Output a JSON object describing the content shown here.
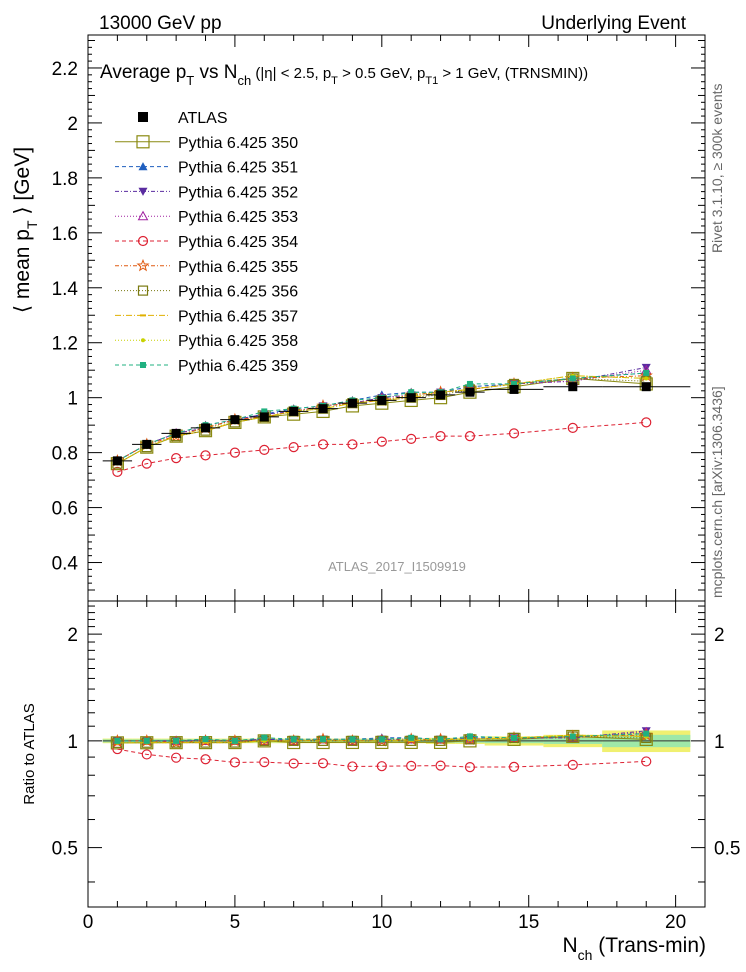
{
  "header": {
    "left": "13000 GeV pp",
    "right": "Underlying Event"
  },
  "side": {
    "rivet": "Rivet 3.1.10, ≥ 300k events",
    "mcplots": "mcplots.cern.ch [arXiv:1306.3436]"
  },
  "chart_data": {
    "type": "line",
    "title": "Average p_T vs N_ch (|η| < 2.5, p_T > 0.5 GeV, p_T1 > 1 GeV, (TRNSMIN))",
    "ylabel": "⟨ mean p_T ⟩ [GeV]",
    "xlabel": "N_ch (Trans-min)",
    "ratio_ylabel": "Ratio to ATLAS",
    "watermark": "ATLAS_2017_I1509919",
    "xlim": [
      0,
      21
    ],
    "ylim": [
      0.26,
      2.32
    ],
    "ratio_ylim": [
      0.34,
      2.48
    ],
    "xticks": [
      0,
      5,
      10,
      15,
      20
    ],
    "yticks": [
      0.4,
      0.6,
      0.8,
      1,
      1.2,
      1.4,
      1.6,
      1.8,
      2,
      2.2
    ],
    "ratio_yticks": [
      0.5,
      1,
      2
    ],
    "x": [
      1,
      2,
      3,
      4,
      5,
      6,
      7,
      8,
      9,
      10,
      11,
      12,
      13,
      14.5,
      16.5,
      19
    ],
    "x_err": [
      0.5,
      0.5,
      0.5,
      0.5,
      0.5,
      0.5,
      0.5,
      0.5,
      0.5,
      0.5,
      0.5,
      0.5,
      0.5,
      1,
      1,
      1.5
    ],
    "reference": {
      "name": "ATLAS",
      "values": [
        0.77,
        0.83,
        0.87,
        0.89,
        0.92,
        0.93,
        0.95,
        0.96,
        0.98,
        0.99,
        1.0,
        1.01,
        1.02,
        1.03,
        1.04,
        1.04
      ],
      "ratio_band_inner": [
        0.01,
        0.01,
        0.01,
        0.01,
        0.01,
        0.01,
        0.01,
        0.01,
        0.01,
        0.01,
        0.01,
        0.012,
        0.012,
        0.015,
        0.02,
        0.04
      ],
      "ratio_band_outer": [
        0.015,
        0.015,
        0.015,
        0.015,
        0.015,
        0.015,
        0.015,
        0.015,
        0.015,
        0.015,
        0.015,
        0.02,
        0.02,
        0.03,
        0.04,
        0.07
      ]
    },
    "series": [
      {
        "name": "Pythia 6.425 350",
        "color": "#8a8a10",
        "dash": "",
        "marker": "open-square-big",
        "values": [
          0.76,
          0.82,
          0.86,
          0.88,
          0.91,
          0.93,
          0.94,
          0.95,
          0.97,
          0.98,
          0.99,
          1.0,
          1.02,
          1.04,
          1.07,
          1.05
        ]
      },
      {
        "name": "Pythia 6.425 351",
        "color": "#1f5fbf",
        "dash": "4,3",
        "marker": "filled-triangle-up",
        "values": [
          0.77,
          0.83,
          0.87,
          0.9,
          0.92,
          0.94,
          0.96,
          0.97,
          0.99,
          1.01,
          1.02,
          1.02,
          1.04,
          1.05,
          1.07,
          1.09
        ]
      },
      {
        "name": "Pythia 6.425 352",
        "color": "#5a2ca0",
        "dash": "4,2,1,2",
        "marker": "filled-triangle-down",
        "values": [
          0.77,
          0.83,
          0.87,
          0.89,
          0.92,
          0.94,
          0.95,
          0.97,
          0.98,
          1.0,
          1.01,
          1.02,
          1.03,
          1.05,
          1.06,
          1.11
        ]
      },
      {
        "name": "Pythia 6.425 353",
        "color": "#a020a0",
        "dash": "1,2",
        "marker": "open-triangle-up",
        "values": [
          0.77,
          0.83,
          0.87,
          0.89,
          0.92,
          0.93,
          0.95,
          0.97,
          0.98,
          1.0,
          1.01,
          1.02,
          1.03,
          1.05,
          1.06,
          1.1
        ]
      },
      {
        "name": "Pythia 6.425 354",
        "color": "#dd2233",
        "dash": "4,3",
        "marker": "open-circle",
        "values": [
          0.73,
          0.76,
          0.78,
          0.79,
          0.8,
          0.81,
          0.82,
          0.83,
          0.83,
          0.84,
          0.85,
          0.86,
          0.86,
          0.87,
          0.89,
          0.91
        ]
      },
      {
        "name": "Pythia 6.425 355",
        "color": "#e05a10",
        "dash": "4,2,1,2",
        "marker": "open-star",
        "values": [
          0.77,
          0.83,
          0.86,
          0.89,
          0.92,
          0.93,
          0.95,
          0.97,
          0.98,
          0.99,
          1.01,
          1.02,
          1.03,
          1.05,
          1.07,
          1.08
        ]
      },
      {
        "name": "Pythia 6.425 356",
        "color": "#7a7a10",
        "dash": "1,2",
        "marker": "open-square",
        "values": [
          0.76,
          0.82,
          0.86,
          0.88,
          0.91,
          0.93,
          0.95,
          0.96,
          0.98,
          0.99,
          1.0,
          1.01,
          1.03,
          1.05,
          1.07,
          1.06
        ]
      },
      {
        "name": "Pythia 6.425 357",
        "color": "#e0b000",
        "dash": "6,2,1,2",
        "marker": "dash",
        "values": [
          0.76,
          0.82,
          0.86,
          0.88,
          0.91,
          0.93,
          0.95,
          0.96,
          0.98,
          0.99,
          1.0,
          1.02,
          1.03,
          1.05,
          1.08,
          1.07
        ]
      },
      {
        "name": "Pythia 6.425 358",
        "color": "#c8d200",
        "dash": "1,2",
        "marker": "small-dot",
        "values": [
          0.76,
          0.82,
          0.86,
          0.89,
          0.91,
          0.93,
          0.95,
          0.96,
          0.98,
          0.99,
          1.01,
          1.02,
          1.03,
          1.05,
          1.08,
          1.07
        ]
      },
      {
        "name": "Pythia 6.425 359",
        "color": "#20b080",
        "dash": "4,3",
        "marker": "filled-square-small",
        "values": [
          0.77,
          0.83,
          0.87,
          0.9,
          0.92,
          0.95,
          0.96,
          0.97,
          0.99,
          1.0,
          1.02,
          1.02,
          1.05,
          1.05,
          1.07,
          1.09
        ]
      }
    ]
  }
}
